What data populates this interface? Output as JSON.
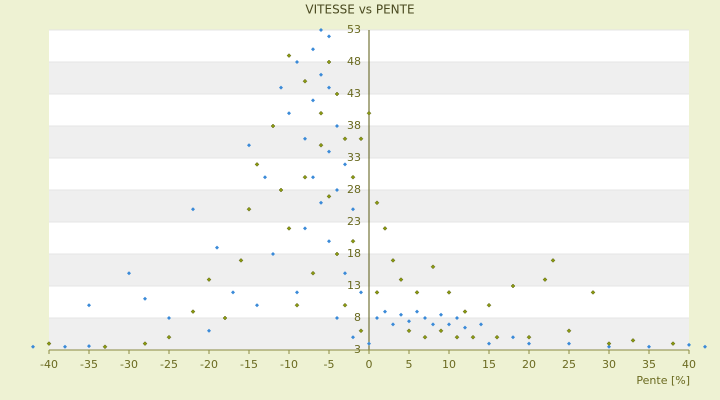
{
  "chart_data": {
    "type": "scatter",
    "title": "VITESSE vs PENTE",
    "x_label": "Pente [%]",
    "xlim": [
      -40,
      40
    ],
    "ylim": [
      3,
      53
    ],
    "xticks": [
      -40,
      -35,
      -30,
      -25,
      -20,
      -15,
      -10,
      -5,
      0,
      5,
      10,
      15,
      20,
      25,
      30,
      35,
      40
    ],
    "yticks": [
      3,
      8,
      13,
      18,
      23,
      28,
      33,
      38,
      43,
      48,
      53
    ],
    "grid": true,
    "series": [
      {
        "color": "#3a8ad8",
        "x": [
          -42,
          -38,
          -35,
          -35,
          -30,
          -28,
          -25,
          -22,
          -20,
          -19,
          -17,
          -15,
          -14,
          -13,
          -12,
          -11,
          -10,
          -9,
          -9,
          -8,
          -8,
          -7,
          -7,
          -7,
          -6,
          -6,
          -6,
          -5,
          -5,
          -5,
          -5,
          -4,
          -4,
          -4,
          -3,
          -3,
          -2,
          -2,
          -1,
          0,
          1,
          2,
          3,
          4,
          5,
          6,
          7,
          8,
          9,
          10,
          11,
          12,
          14,
          15,
          18,
          20,
          25,
          30,
          35,
          40,
          42
        ],
        "values": [
          3.5,
          3.5,
          3.6,
          10,
          15,
          11,
          8,
          25,
          6,
          19,
          12,
          35,
          10,
          30,
          18,
          44,
          40,
          48,
          12,
          22,
          36,
          50,
          42,
          30,
          53,
          46,
          26,
          52,
          44,
          34,
          20,
          38,
          28,
          8,
          32,
          15,
          25,
          5,
          12,
          4,
          8,
          9,
          7,
          8.5,
          7.5,
          9,
          8,
          7,
          8.5,
          7,
          8,
          6.5,
          7,
          4,
          5,
          4,
          4,
          3.5,
          3.5,
          3.8,
          3.5
        ]
      },
      {
        "color": "#8a9a10",
        "x": [
          -40,
          -33,
          -28,
          -25,
          -22,
          -20,
          -18,
          -16,
          -15,
          -14,
          -12,
          -11,
          -10,
          -10,
          -9,
          -8,
          -8,
          -7,
          -6,
          -6,
          -5,
          -5,
          -4,
          -4,
          -3,
          -3,
          -2,
          -2,
          -1,
          -1,
          0,
          1,
          1,
          2,
          3,
          4,
          5,
          6,
          7,
          8,
          9,
          10,
          11,
          12,
          13,
          15,
          16,
          18,
          20,
          22,
          23,
          25,
          28,
          30,
          33,
          38
        ],
        "values": [
          4,
          3.5,
          4,
          5,
          9,
          14,
          8,
          17,
          25,
          32,
          38,
          28,
          49,
          22,
          10,
          45,
          30,
          15,
          40,
          35,
          48,
          27,
          43,
          18,
          36,
          10,
          30,
          20,
          36,
          6,
          40,
          26,
          12,
          22,
          17,
          14,
          6,
          12,
          5,
          16,
          6,
          12,
          5,
          9,
          5,
          10,
          5,
          13,
          5,
          14,
          17,
          6,
          12,
          4,
          4.5,
          4
        ]
      }
    ]
  }
}
